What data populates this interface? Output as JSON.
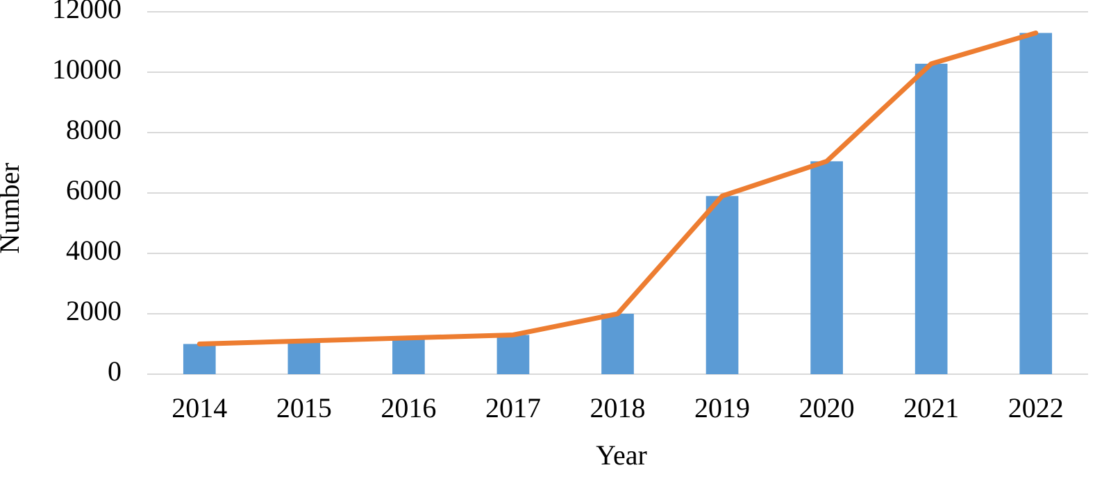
{
  "chart_data": {
    "type": "combo",
    "x_label": "Year",
    "y_label": "Number",
    "categories": [
      "2014",
      "2015",
      "2016",
      "2017",
      "2018",
      "2019",
      "2020",
      "2021",
      "2022"
    ],
    "series": [
      {
        "type": "bar",
        "color": "#5b9bd5",
        "values": [
          1000,
          1100,
          1200,
          1300,
          2000,
          5900,
          7050,
          10280,
          11300
        ]
      },
      {
        "type": "line",
        "color": "#ed7d31",
        "values": [
          1000,
          1100,
          1200,
          1300,
          2000,
          5900,
          7050,
          10280,
          11300
        ]
      }
    ],
    "ylim": [
      0,
      12000
    ],
    "yticks": [
      0,
      2000,
      4000,
      6000,
      8000,
      10000,
      12000
    ],
    "grid": true
  }
}
